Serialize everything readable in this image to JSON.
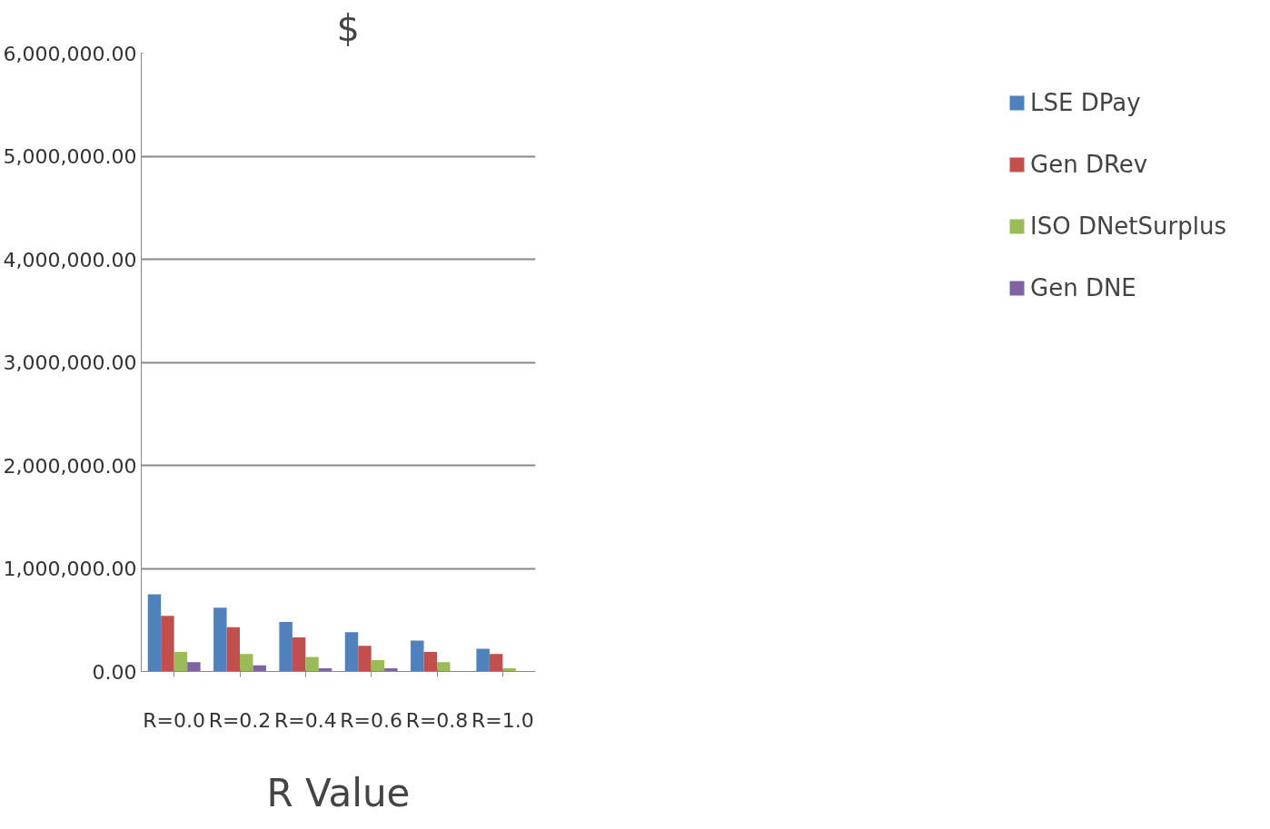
{
  "chart_data": {
    "type": "bar",
    "xlabel": "R Value",
    "ylabel": "$",
    "categories": [
      "R=0.0",
      "R=0.2",
      "R=0.4",
      "R=0.6",
      "R=0.8",
      "R=1.0"
    ],
    "series": [
      {
        "name": "LSE DPay",
        "color": "#4f81bd",
        "values": [
          750000,
          620000,
          480000,
          380000,
          300000,
          220000
        ]
      },
      {
        "name": "Gen DRev",
        "color": "#c0504d",
        "values": [
          540000,
          430000,
          330000,
          250000,
          190000,
          170000
        ]
      },
      {
        "name": "ISO DNetSurplus",
        "color": "#9bbb59",
        "values": [
          190000,
          170000,
          140000,
          110000,
          90000,
          30000
        ]
      },
      {
        "name": "Gen DNE",
        "color": "#8064a2",
        "values": [
          90000,
          60000,
          30000,
          30000,
          0,
          0
        ]
      }
    ],
    "ylim": [
      0,
      6000000
    ],
    "yticks": [
      {
        "value": 0,
        "label": "0.00"
      },
      {
        "value": 1000000,
        "label": "1,000,000.00"
      },
      {
        "value": 2000000,
        "label": "2,000,000.00"
      },
      {
        "value": 3000000,
        "label": "3,000,000.00"
      },
      {
        "value": 4000000,
        "label": "4,000,000.00"
      },
      {
        "value": 5000000,
        "label": "5,000,000.00"
      },
      {
        "value": 6000000,
        "label": "6,000,000.00"
      }
    ],
    "grid": "y",
    "legend": "right"
  }
}
